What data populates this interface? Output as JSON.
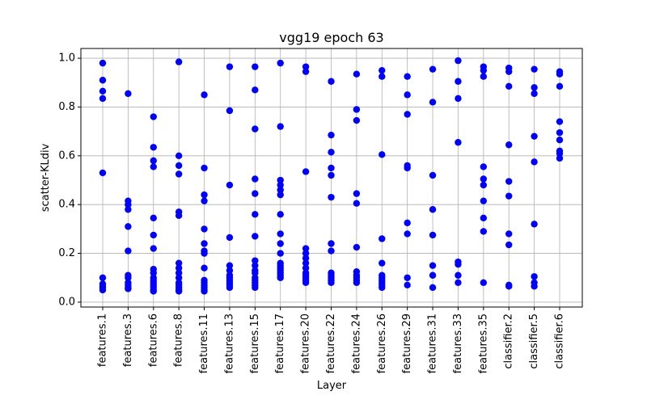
{
  "chart_data": {
    "type": "scatter",
    "title": "vgg19 epoch 63",
    "xlabel": "Layer",
    "ylabel": "scatter-KLdiv",
    "ylim": [
      -0.02,
      1.04
    ],
    "yticks": [
      0.0,
      0.2,
      0.4,
      0.6,
      0.8,
      1.0
    ],
    "ytick_labels": [
      "0.0",
      "0.2",
      "0.4",
      "0.6",
      "0.8",
      "1.0"
    ],
    "grid": true,
    "marker_color": "#0000ff",
    "categories": [
      "features.1",
      "features.3",
      "features.6",
      "features.8",
      "features.11",
      "features.13",
      "features.15",
      "features.17",
      "features.20",
      "features.22",
      "features.24",
      "features.26",
      "features.29",
      "features.31",
      "features.33",
      "features.35",
      "classifier.2",
      "classifier.5",
      "classifier.6"
    ],
    "series": [
      {
        "values": [
          [
            0.98,
            0.91,
            0.865,
            0.835,
            0.53,
            0.1,
            0.075,
            0.065,
            0.06,
            0.05
          ],
          [
            0.855,
            0.415,
            0.4,
            0.38,
            0.31,
            0.21,
            0.11,
            0.1,
            0.08,
            0.07,
            0.06,
            0.055
          ],
          [
            0.76,
            0.635,
            0.58,
            0.555,
            0.345,
            0.275,
            0.22,
            0.135,
            0.12,
            0.1,
            0.09,
            0.08,
            0.07,
            0.06,
            0.05,
            0.045
          ],
          [
            0.985,
            0.6,
            0.56,
            0.525,
            0.37,
            0.355,
            0.16,
            0.14,
            0.12,
            0.1,
            0.08,
            0.07,
            0.06,
            0.05,
            0.045
          ],
          [
            0.85,
            0.55,
            0.44,
            0.415,
            0.3,
            0.24,
            0.21,
            0.2,
            0.14,
            0.09,
            0.08,
            0.07,
            0.06,
            0.05,
            0.045
          ],
          [
            0.965,
            0.785,
            0.48,
            0.265,
            0.15,
            0.13,
            0.11,
            0.1,
            0.09,
            0.08,
            0.07,
            0.06
          ],
          [
            0.965,
            0.87,
            0.71,
            0.505,
            0.445,
            0.36,
            0.27,
            0.17,
            0.15,
            0.13,
            0.12,
            0.1,
            0.09,
            0.08,
            0.07,
            0.06
          ],
          [
            0.98,
            0.72,
            0.5,
            0.48,
            0.46,
            0.44,
            0.36,
            0.28,
            0.24,
            0.2,
            0.16,
            0.15,
            0.14,
            0.13,
            0.12,
            0.11,
            0.1
          ],
          [
            0.965,
            0.945,
            0.535,
            0.22,
            0.2,
            0.18,
            0.16,
            0.14,
            0.12,
            0.11,
            0.1,
            0.09,
            0.08
          ],
          [
            0.905,
            0.685,
            0.615,
            0.55,
            0.52,
            0.43,
            0.24,
            0.21,
            0.12,
            0.11,
            0.1,
            0.09,
            0.08
          ],
          [
            0.935,
            0.79,
            0.745,
            0.445,
            0.405,
            0.225,
            0.125,
            0.11,
            0.1,
            0.09,
            0.08
          ],
          [
            0.95,
            0.925,
            0.605,
            0.26,
            0.16,
            0.11,
            0.1,
            0.09,
            0.08,
            0.07,
            0.06
          ],
          [
            0.925,
            0.85,
            0.77,
            0.56,
            0.55,
            0.325,
            0.28,
            0.1,
            0.07
          ],
          [
            0.955,
            0.82,
            0.52,
            0.38,
            0.275,
            0.15,
            0.11,
            0.06
          ],
          [
            0.99,
            0.905,
            0.835,
            0.655,
            0.165,
            0.155,
            0.11,
            0.08
          ],
          [
            0.965,
            0.95,
            0.925,
            0.555,
            0.505,
            0.48,
            0.415,
            0.345,
            0.29,
            0.08
          ],
          [
            0.96,
            0.945,
            0.885,
            0.645,
            0.495,
            0.435,
            0.28,
            0.235,
            0.07,
            0.065
          ],
          [
            0.955,
            0.88,
            0.855,
            0.68,
            0.575,
            0.32,
            0.105,
            0.08,
            0.065
          ],
          [
            0.945,
            0.935,
            0.885,
            0.74,
            0.695,
            0.665,
            0.62,
            0.61,
            0.59
          ]
        ]
      }
    ]
  }
}
